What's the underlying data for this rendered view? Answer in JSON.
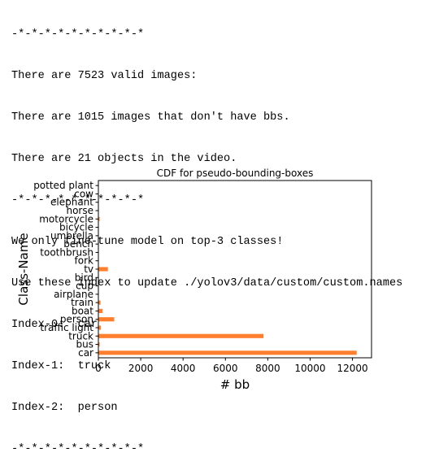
{
  "console": {
    "lines": [
      "-*-*-*-*-*-*-*-*-*-*",
      "There are 7523 valid images:",
      "There are 1015 images that don't have bbs.",
      "There are 21 objects in the video.",
      "-*-*-*-*-*-*-*-*-*-*",
      "We only fine-tune model on top-3 classes!",
      "Use these index to update ./yolov3/data/custom/custom.names",
      "Index-0:  car",
      "Index-1:  truck",
      "Index-2:  person",
      "-*-*-*-*-*-*-*-*-*-*"
    ]
  },
  "chart_data": {
    "type": "bar",
    "orientation": "horizontal",
    "title": "CDF for pseudo-bounding-boxes",
    "xlabel": "# bb",
    "ylabel": "Class-Name",
    "categories": [
      "car",
      "bus",
      "truck",
      "traffic light",
      "person",
      "boat",
      "train",
      "airplane",
      "cup",
      "bird",
      "tv",
      "fork",
      "toothbrush",
      "bench",
      "umbrella",
      "bicycle",
      "motorcycle",
      "horse",
      "elephant",
      "cow",
      "potted plant"
    ],
    "values": [
      12200,
      60,
      7800,
      120,
      750,
      200,
      100,
      20,
      10,
      20,
      450,
      10,
      10,
      10,
      10,
      10,
      60,
      10,
      10,
      10,
      10
    ],
    "xlim": [
      0,
      12900
    ],
    "xticks": [
      0,
      2000,
      4000,
      6000,
      8000,
      10000,
      12000
    ],
    "bar_color": "#ff7f2e",
    "grid": false
  }
}
